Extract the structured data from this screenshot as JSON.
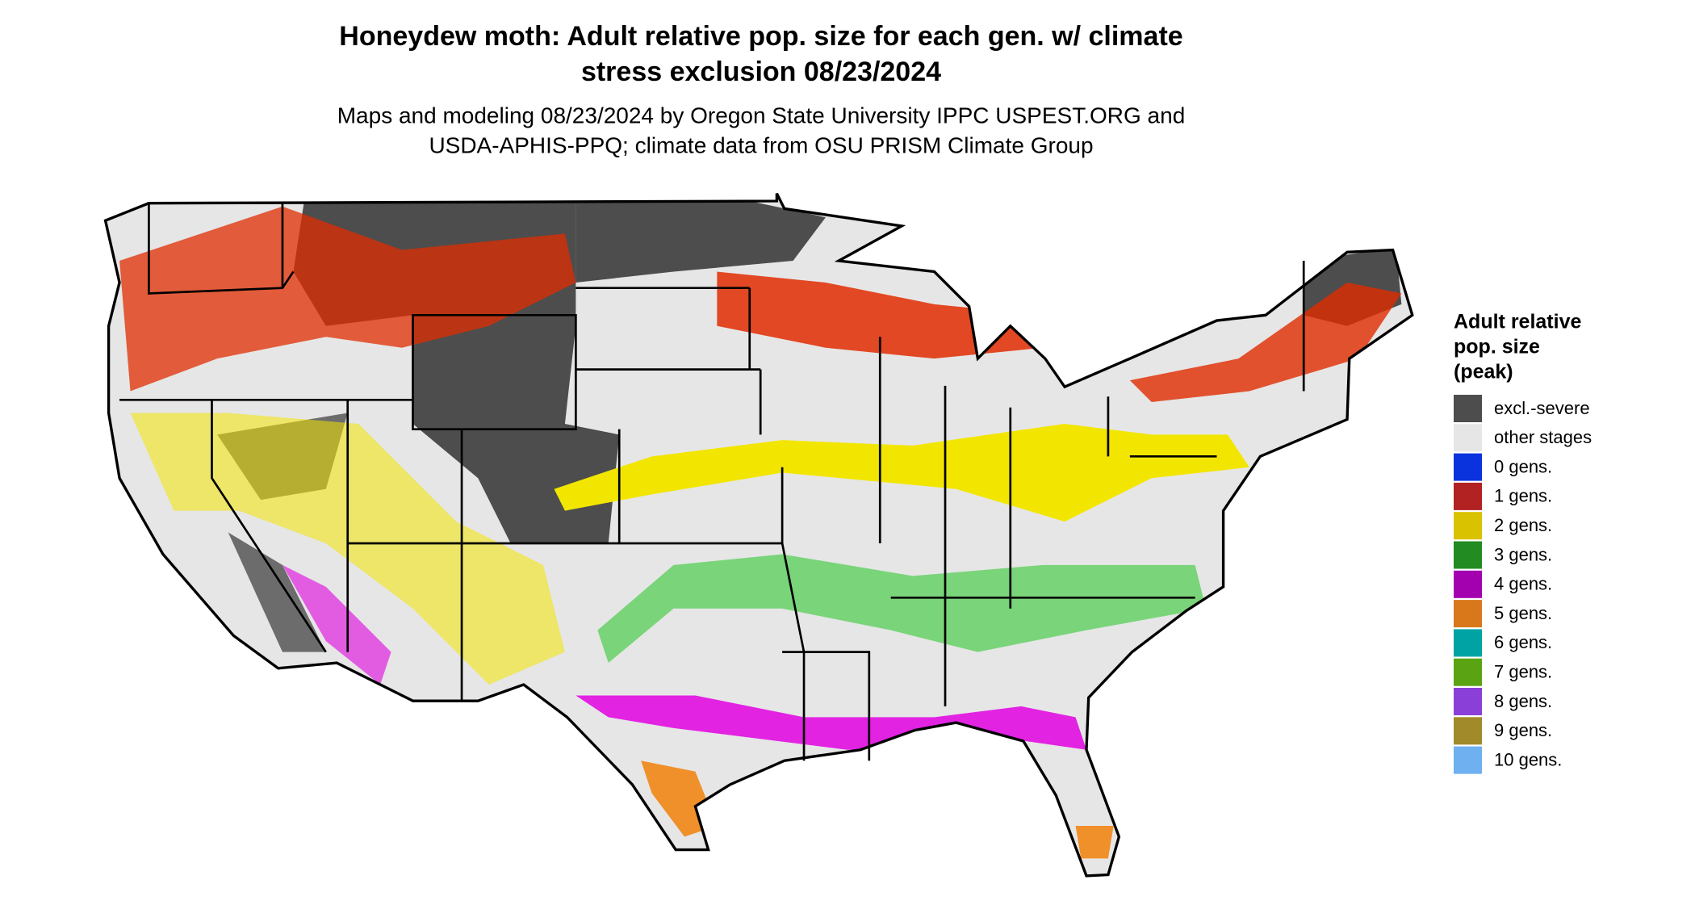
{
  "title": [
    "Honeydew moth: Adult relative pop. size for each gen. w/ climate",
    "stress exclusion 08/23/2024"
  ],
  "subtitle": [
    "Maps and modeling 08/23/2024 by Oregon State University IPPC USPEST.ORG and",
    "USDA-APHIS-PPQ; climate data from OSU PRISM Climate Group"
  ],
  "legend": {
    "title": [
      "Adult relative",
      "pop. size",
      "(peak)"
    ],
    "items": [
      {
        "label": "excl.-severe",
        "color": "#4d4d4d"
      },
      {
        "label": "other stages",
        "color": "#e6e6e6"
      },
      {
        "label": "0 gens.",
        "color": "#0a33dd"
      },
      {
        "label": "1 gens.",
        "color": "#b22222"
      },
      {
        "label": "2 gens.",
        "color": "#d9c200"
      },
      {
        "label": "3 gens.",
        "color": "#228b22"
      },
      {
        "label": "4 gens.",
        "color": "#a300b0"
      },
      {
        "label": "5 gens.",
        "color": "#d8781a"
      },
      {
        "label": "6 gens.",
        "color": "#00a3a3"
      },
      {
        "label": "7 gens.",
        "color": "#5aa312"
      },
      {
        "label": "8 gens.",
        "color": "#8b3fd9"
      },
      {
        "label": "9 gens.",
        "color": "#a08a2a"
      },
      {
        "label": "10 gens.",
        "color": "#6fb0f0"
      }
    ]
  }
}
